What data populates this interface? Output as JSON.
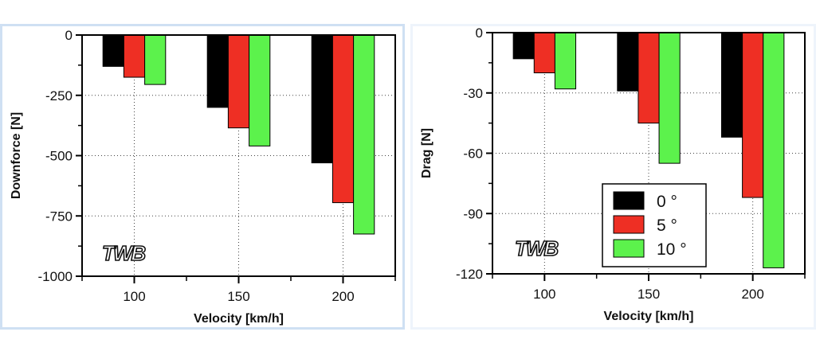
{
  "chart_data": [
    {
      "type": "bar",
      "categories": [
        "100",
        "150",
        "200"
      ],
      "series": [
        {
          "name": "0 °",
          "color": "#000000",
          "values": [
            -130,
            -300,
            -530
          ]
        },
        {
          "name": "5 °",
          "color": "#ee2f24",
          "values": [
            -175,
            -385,
            -695
          ]
        },
        {
          "name": "10 °",
          "color": "#5cf24c",
          "values": [
            -205,
            -460,
            -825
          ]
        }
      ],
      "xlabel": "Velocity [km/h]",
      "ylabel": "Downforce [N]",
      "ylim": [
        -1000,
        0
      ],
      "yticks": [
        0,
        -250,
        -500,
        -750,
        -1000
      ],
      "ytick_labels": [
        "0",
        "-250",
        "-500",
        "-750",
        "-1000"
      ],
      "grid": true,
      "legend": false,
      "watermark": "TWB"
    },
    {
      "type": "bar",
      "categories": [
        "100",
        "150",
        "200"
      ],
      "series": [
        {
          "name": "0 °",
          "color": "#000000",
          "values": [
            -13,
            -29,
            -52
          ]
        },
        {
          "name": "5 °",
          "color": "#ee2f24",
          "values": [
            -20,
            -45,
            -82
          ]
        },
        {
          "name": "10 °",
          "color": "#5cf24c",
          "values": [
            -28,
            -65,
            -117
          ]
        }
      ],
      "xlabel": "Velocity [km/h]",
      "ylabel": "Drag [N]",
      "ylim": [
        -120,
        0
      ],
      "yticks": [
        0,
        -30,
        -60,
        -90,
        -120
      ],
      "ytick_labels": [
        "0",
        "-30",
        "-60",
        "-90",
        "-120"
      ],
      "grid": true,
      "legend": true,
      "legend_position": "bottom-right",
      "watermark": "TWB"
    }
  ]
}
